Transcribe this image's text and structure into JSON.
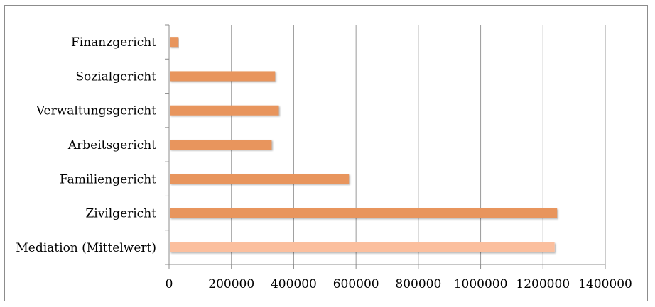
{
  "chart_data": {
    "type": "bar",
    "orientation": "horizontal",
    "title": "",
    "xlabel": "",
    "ylabel": "",
    "categories": [
      "Mediation (Mittelwert)",
      "Zivilgericht",
      "Familiengericht",
      "Arbeitsgericht",
      "Verwaltungsgericht",
      "Sozialgericht",
      "Finanzgericht"
    ],
    "values": [
      1235000,
      1243000,
      575000,
      327000,
      350000,
      338000,
      28000
    ],
    "bar_colors": [
      "#fbbf9e",
      "#e8955d",
      "#e8955d",
      "#e8955d",
      "#e8955d",
      "#e8955d",
      "#e8955d"
    ],
    "xlim": [
      0,
      1400000
    ],
    "xticks": [
      0,
      200000,
      400000,
      600000,
      800000,
      1000000,
      1200000,
      1400000
    ],
    "xtick_labels": [
      "0",
      "200000",
      "400000",
      "600000",
      "800000",
      "1000000",
      "1200000",
      "1400000"
    ],
    "grid": "vertical",
    "grid_color": "#9a9a9a",
    "legend": "none"
  }
}
